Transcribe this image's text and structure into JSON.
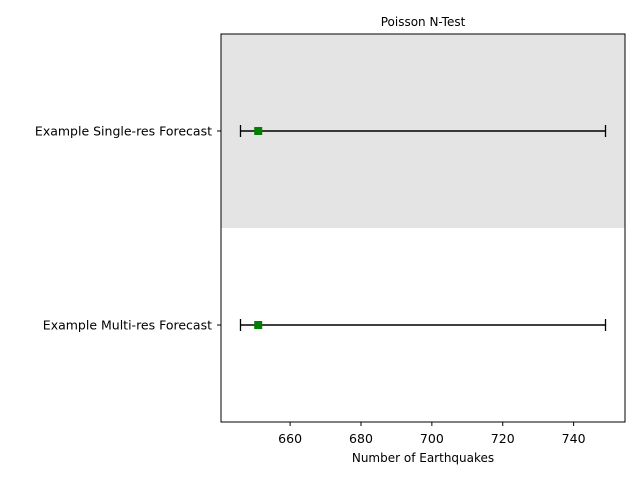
{
  "chart_data": {
    "type": "errorbar",
    "title": "Poisson N-Test",
    "xlabel": "Number of Earthquakes",
    "ylabel": "",
    "xlim": [
      640.5,
      754.5
    ],
    "xticks": [
      660,
      680,
      700,
      720,
      740
    ],
    "grid": false,
    "legend": "none",
    "rows": [
      {
        "label": "Example Single-res Forecast",
        "observed": 651,
        "interval_low": 646,
        "interval_high": 749,
        "shaded": true
      },
      {
        "label": "Example Multi-res Forecast",
        "observed": 651,
        "interval_low": 646,
        "interval_high": 749,
        "shaded": false
      }
    ],
    "colors": {
      "marker": "#008000",
      "interval": "#000000",
      "shade": "#e4e4e4"
    }
  }
}
